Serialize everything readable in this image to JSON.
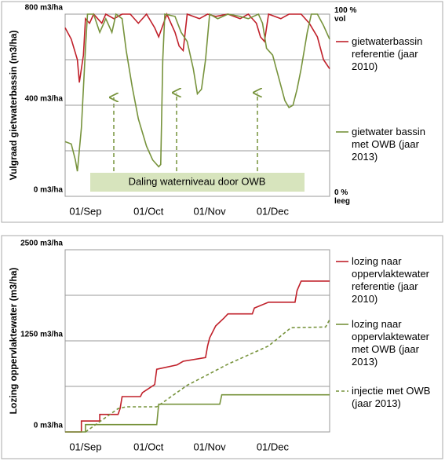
{
  "chart_data": [
    {
      "type": "line",
      "ylabel": "Vulgraad gietwaterbassin (m3/ha)",
      "xlim": [
        0,
        130
      ],
      "xticks": [
        {
          "value": 10,
          "label": "01/Sep"
        },
        {
          "value": 41,
          "label": "01/Oct"
        },
        {
          "value": 71,
          "label": "01/Nov"
        },
        {
          "value": 102,
          "label": "01/Dec"
        }
      ],
      "ylim": [
        0,
        800
      ],
      "yticks": [
        {
          "value": 0,
          "label": "0 m3/ha"
        },
        {
          "value": 400,
          "label": "400 m3/ha"
        },
        {
          "value": 800,
          "label": "800 m3/ha"
        }
      ],
      "ygrid": [
        0,
        200,
        400,
        600,
        800
      ],
      "y2lim": [
        0,
        100
      ],
      "y2ticks": [
        {
          "value": 0,
          "label": "0 % leeg"
        },
        {
          "value": 100,
          "label": "100 % vol"
        }
      ],
      "annotation": "Daling waterniveau door OWB",
      "series": [
        {
          "name": "gietwaterbassin referentie (jaar 2010)",
          "color": "#c0202a",
          "dashed": false,
          "x": [
            0,
            3,
            6,
            7,
            9,
            10,
            12,
            14,
            18,
            20,
            24,
            28,
            32,
            36,
            40,
            44,
            46,
            50,
            54,
            56,
            58,
            60,
            66,
            70,
            74,
            80,
            86,
            90,
            94,
            96,
            98,
            100,
            106,
            110,
            116,
            120,
            124,
            127,
            130
          ],
          "values": [
            740,
            690,
            600,
            500,
            620,
            780,
            760,
            800,
            760,
            800,
            780,
            800,
            800,
            760,
            800,
            740,
            700,
            800,
            720,
            660,
            640,
            800,
            780,
            800,
            790,
            800,
            780,
            800,
            760,
            700,
            680,
            800,
            780,
            800,
            800,
            760,
            700,
            600,
            560
          ]
        },
        {
          "name": "gietwater bassin met OWB (jaar 2013)",
          "color": "#77933c",
          "dashed": false,
          "x": [
            0,
            3,
            5,
            6,
            8,
            10,
            11,
            14,
            17,
            20,
            23,
            25,
            28,
            30,
            33,
            36,
            40,
            43,
            46,
            47,
            48,
            49,
            54,
            57,
            60,
            63,
            65,
            67,
            69,
            71,
            75,
            80,
            86,
            90,
            95,
            97,
            99,
            102,
            105,
            108,
            110,
            112,
            114,
            116,
            119,
            121,
            124,
            127,
            130
          ],
          "values": [
            240,
            230,
            160,
            110,
            300,
            650,
            800,
            800,
            720,
            780,
            720,
            800,
            780,
            640,
            480,
            340,
            220,
            160,
            130,
            140,
            600,
            800,
            790,
            720,
            680,
            560,
            450,
            470,
            600,
            800,
            780,
            800,
            790,
            780,
            800,
            760,
            650,
            620,
            520,
            420,
            390,
            400,
            470,
            560,
            720,
            800,
            800,
            750,
            690
          ]
        }
      ]
    },
    {
      "type": "line",
      "ylabel": "Lozing  oppervlaktewater (m3/ha)",
      "xlim": [
        0,
        130
      ],
      "xticks": [
        {
          "value": 10,
          "label": "01/Sep"
        },
        {
          "value": 41,
          "label": "01/Oct"
        },
        {
          "value": 71,
          "label": "01/Nov"
        },
        {
          "value": 102,
          "label": "01/Dec"
        }
      ],
      "ylim": [
        0,
        2500
      ],
      "yticks": [
        {
          "value": 0,
          "label": "0 m3/ha"
        },
        {
          "value": 1250,
          "label": "1250 m3/ha"
        },
        {
          "value": 2500,
          "label": "2500 m3/ha"
        }
      ],
      "ygrid": [
        0,
        625,
        1250,
        1875,
        2500
      ],
      "series": [
        {
          "name": "lozing naar oppervlaktewater referentie (jaar 2010)",
          "color": "#c0202a",
          "dashed": false,
          "x": [
            0,
            8,
            8,
            17,
            17,
            26,
            27,
            28,
            37,
            38,
            44,
            45,
            55,
            58,
            69,
            70,
            71,
            74,
            78,
            80,
            92,
            93,
            100,
            113,
            114,
            116,
            130
          ],
          "values": [
            0,
            0,
            150,
            150,
            240,
            240,
            320,
            485,
            485,
            540,
            650,
            860,
            920,
            970,
            1020,
            1180,
            1290,
            1455,
            1560,
            1620,
            1620,
            1700,
            1780,
            1780,
            1940,
            2070,
            2070
          ]
        },
        {
          "name": "lozing naar oppervlaktewater met OWB (jaar 2013)",
          "color": "#77933c",
          "dashed": false,
          "x": [
            0,
            10,
            10,
            45,
            46,
            76,
            77,
            130
          ],
          "values": [
            0,
            0,
            100,
            100,
            380,
            380,
            510,
            510
          ]
        },
        {
          "name": "injectie met OWB (jaar 2013)",
          "color": "#77933c",
          "dashed": true,
          "x": [
            10,
            26,
            30,
            45,
            60,
            80,
            100,
            111,
            128,
            130
          ],
          "values": [
            0,
            320,
            345,
            345,
            640,
            930,
            1180,
            1430,
            1440,
            1540
          ]
        }
      ]
    }
  ]
}
